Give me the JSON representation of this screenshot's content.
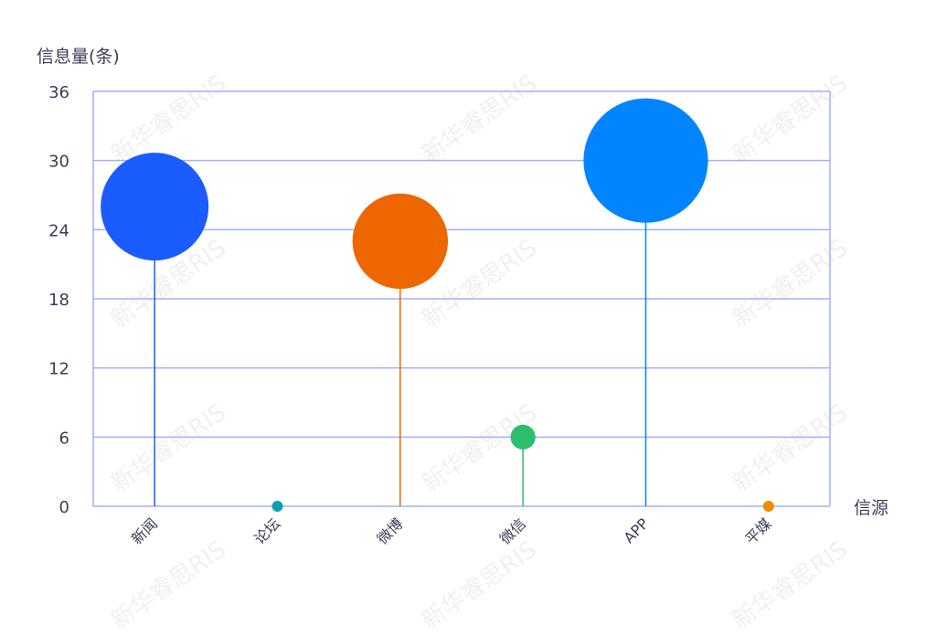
{
  "chart_data": {
    "type": "scatter",
    "subtype": "lollipop-bubble",
    "title": "",
    "ylabel": "信息量(条)",
    "xlabel": "信源",
    "categories": [
      "新闻",
      "论坛",
      "微博",
      "微信",
      "APP",
      "平媒"
    ],
    "values": [
      26,
      0,
      23,
      6,
      30,
      0
    ],
    "colors": [
      "#1a5cff",
      "#0d9fb0",
      "#ee6600",
      "#2dbd6e",
      "#0085ff",
      "#f08c00"
    ],
    "ylim": [
      0,
      36
    ],
    "yticks": [
      "0",
      "6",
      "12",
      "18",
      "24",
      "30",
      "36"
    ],
    "grid": true,
    "grid_color": "#9fb0ff",
    "legend": "none"
  },
  "watermark": "新华睿思RIS"
}
